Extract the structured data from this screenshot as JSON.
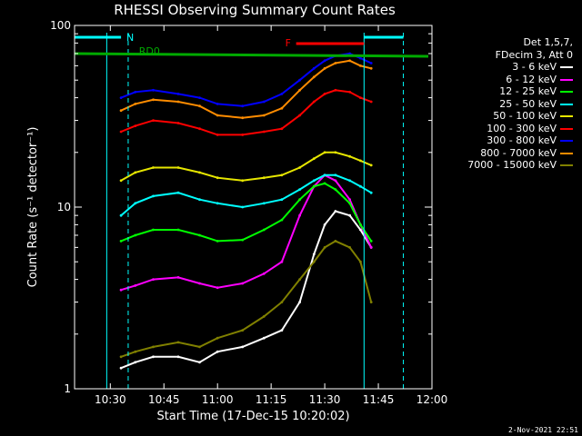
{
  "chart_data": {
    "type": "line",
    "title": "RHESSI Observing Summary Count Rates",
    "xlabel": "Start Time (17-Dec-15 10:20:02)",
    "ylabel": "Count Rate (s⁻¹ detector⁻¹)",
    "yscale": "log",
    "ylim": [
      1,
      100
    ],
    "xlim": [
      "10:20",
      "12:00"
    ],
    "x_ticks": [
      "10:30",
      "10:45",
      "11:00",
      "11:15",
      "11:30",
      "11:45",
      "12:00"
    ],
    "y_ticks": [
      "1",
      "10",
      "100"
    ],
    "x_time": [
      "10:20",
      "10:27",
      "10:33",
      "10:37",
      "10:42",
      "10:49",
      "10:55",
      "11:00",
      "11:07",
      "11:13",
      "11:18",
      "11:23",
      "11:27",
      "11:30",
      "11:33",
      "11:37",
      "11:40",
      "11:43"
    ],
    "series": [
      {
        "name": "3 - 6 keV",
        "color": "#ffffff",
        "values": [
          null,
          null,
          1.3,
          1.4,
          1.5,
          1.5,
          1.4,
          1.6,
          1.7,
          1.9,
          2.1,
          3.0,
          5.5,
          8.0,
          9.5,
          9.0,
          7.5,
          6.0
        ]
      },
      {
        "name": "6 - 12 keV",
        "color": "#ff00ff",
        "values": [
          null,
          null,
          3.5,
          3.7,
          4.0,
          4.1,
          3.8,
          3.6,
          3.8,
          4.3,
          5.0,
          9.0,
          13.0,
          15.0,
          14.0,
          11.0,
          8.0,
          6.0
        ]
      },
      {
        "name": "12 - 25 keV",
        "color": "#00ff00",
        "values": [
          null,
          null,
          6.5,
          7.0,
          7.5,
          7.5,
          7.0,
          6.5,
          6.6,
          7.5,
          8.5,
          11.0,
          13.0,
          13.5,
          12.5,
          10.5,
          8.0,
          6.5
        ]
      },
      {
        "name": "25 - 50 keV",
        "color": "#00ffff",
        "values": [
          null,
          null,
          9.0,
          10.5,
          11.5,
          12.0,
          11.0,
          10.5,
          10.0,
          10.5,
          11.0,
          12.5,
          14.0,
          15.0,
          15.0,
          14.0,
          13.0,
          12.0
        ]
      },
      {
        "name": "50 - 100 keV",
        "color": "#e6e600",
        "values": [
          null,
          null,
          14.0,
          15.5,
          16.5,
          16.5,
          15.5,
          14.5,
          14.0,
          14.5,
          15.0,
          16.5,
          18.5,
          20.0,
          20.0,
          19.0,
          18.0,
          17.0
        ]
      },
      {
        "name": "100 - 300 keV",
        "color": "#ff0000",
        "values": [
          null,
          null,
          26.0,
          28.0,
          30.0,
          29.0,
          27.0,
          25.0,
          25.0,
          26.0,
          27.0,
          32.0,
          38.0,
          42.0,
          44.0,
          43.0,
          40.0,
          38.0
        ]
      },
      {
        "name": "300 - 800 keV",
        "color": "#0000ff",
        "values": [
          null,
          null,
          40.0,
          43.0,
          44.0,
          42.0,
          40.0,
          37.0,
          36.0,
          38.0,
          42.0,
          50.0,
          58.0,
          64.0,
          68.0,
          70.0,
          66.0,
          62.0
        ]
      },
      {
        "name": "800 - 7000 keV",
        "color": "#ff8c00",
        "values": [
          null,
          null,
          34.0,
          37.0,
          39.0,
          38.0,
          36.0,
          32.0,
          31.0,
          32.0,
          35.0,
          44.0,
          52.0,
          58.0,
          62.0,
          64.0,
          60.0,
          58.0
        ]
      },
      {
        "name": "7000 - 15000 keV",
        "color": "#808000",
        "values": [
          null,
          null,
          1.5,
          1.6,
          1.7,
          1.8,
          1.7,
          1.9,
          2.1,
          2.5,
          3.0,
          4.0,
          5.0,
          6.0,
          6.5,
          6.0,
          5.0,
          3.0
        ]
      }
    ],
    "annotations": [
      {
        "text": "N",
        "color": "#00ffff"
      },
      {
        "text": "RD0",
        "color": "#00aa00"
      },
      {
        "text": "F",
        "color": "#ff0000"
      }
    ],
    "grid": false,
    "legend_position": "right"
  },
  "legend": {
    "header": [
      "Det 1,5,7,",
      "FDecim 3, Att 0"
    ],
    "items": [
      {
        "label": "3 - 6 keV",
        "color": "#ffffff"
      },
      {
        "label": "6 - 12 keV",
        "color": "#ff00ff"
      },
      {
        "label": "12 - 25 keV",
        "color": "#00ff00"
      },
      {
        "label": "25 - 50 keV",
        "color": "#00ffff"
      },
      {
        "label": "50 - 100 keV",
        "color": "#e6e600"
      },
      {
        "label": "100 - 300 keV",
        "color": "#ff0000"
      },
      {
        "label": "300 - 800 keV",
        "color": "#0000ff"
      },
      {
        "label": "800 - 7000 keV",
        "color": "#ff8c00"
      },
      {
        "label": "7000 - 15000 keV",
        "color": "#808000"
      }
    ]
  },
  "footer": {
    "generated": "2-Nov-2021 22:51"
  }
}
